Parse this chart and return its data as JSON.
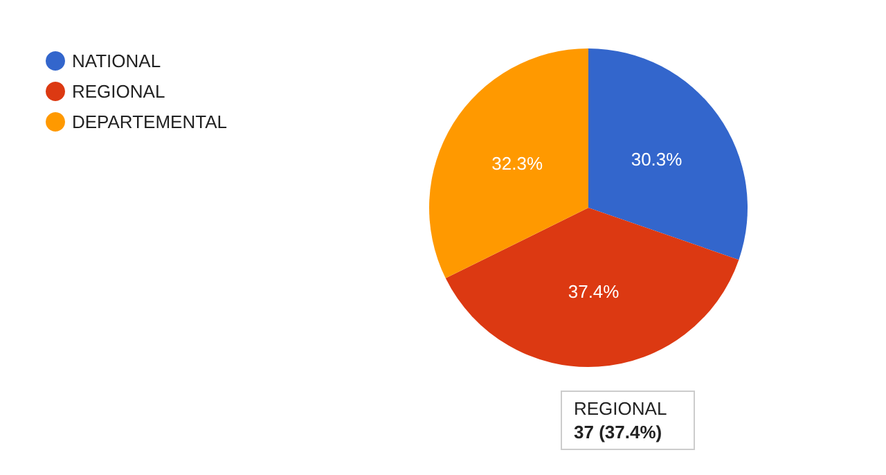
{
  "chart_data": {
    "type": "pie",
    "categories": [
      "NATIONAL",
      "REGIONAL",
      "DEPARTEMENTAL"
    ],
    "values": [
      30.3,
      37.4,
      32.3
    ],
    "colors": [
      "#3366cc",
      "#dc3912",
      "#ff9900"
    ],
    "value_labels": [
      "30.3%",
      "37.4%",
      "32.3%"
    ],
    "legend": "top left",
    "annotations": [
      "REGIONAL\n37 (37.4%)"
    ]
  }
}
